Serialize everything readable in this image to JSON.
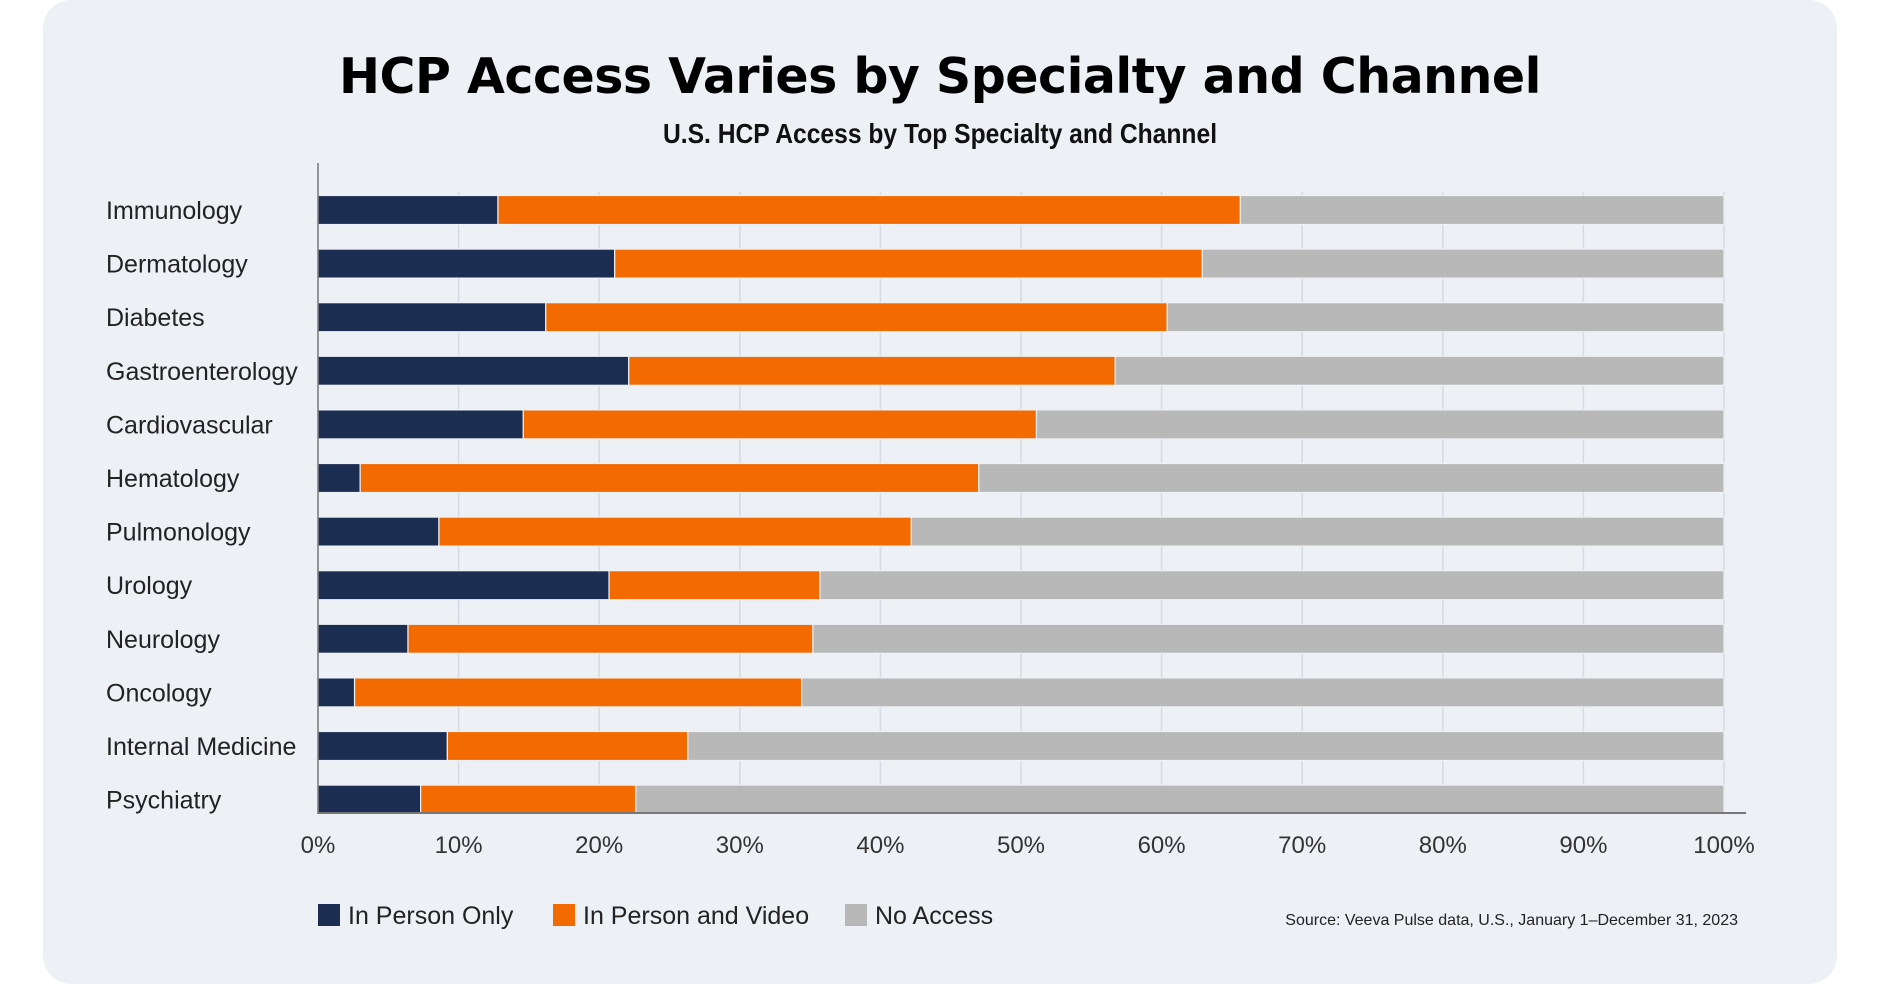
{
  "chart_data": {
    "type": "bar",
    "orientation": "horizontal",
    "stacked": true,
    "title": "HCP Access Varies by Specialty and Channel",
    "subtitle": "U.S. HCP Access by Top Specialty and Channel",
    "categories": [
      "Immunology",
      "Dermatology",
      "Diabetes",
      "Gastroenterology",
      "Cardiovascular",
      "Hematology",
      "Pulmonology",
      "Urology",
      "Neurology",
      "Oncology",
      "Internal Medicine",
      "Psychiatry"
    ],
    "series": [
      {
        "name": "In Person Only",
        "color": "#1c2d52",
        "values": [
          12.8,
          21.1,
          16.2,
          22.1,
          14.6,
          3.0,
          8.6,
          20.7,
          6.4,
          2.6,
          9.2,
          7.3
        ]
      },
      {
        "name": "In Person and Video",
        "color": "#f26a00",
        "values": [
          52.8,
          41.8,
          44.2,
          34.6,
          36.5,
          44.0,
          33.6,
          15.0,
          28.8,
          31.8,
          17.1,
          15.3
        ]
      },
      {
        "name": "No Access",
        "color": "#b8b8b8",
        "values": [
          34.4,
          37.1,
          39.6,
          43.3,
          48.9,
          53.0,
          57.8,
          64.3,
          64.8,
          65.6,
          73.7,
          77.4
        ]
      }
    ],
    "xlim": [
      0,
      100
    ],
    "xticks": [
      "0%",
      "10%",
      "20%",
      "30%",
      "40%",
      "50%",
      "60%",
      "70%",
      "80%",
      "90%",
      "100%"
    ],
    "grid": true,
    "legend_position": "bottom-left",
    "source": "Source: Veeva Pulse data, U.S., January 1–December 31, 2023"
  }
}
